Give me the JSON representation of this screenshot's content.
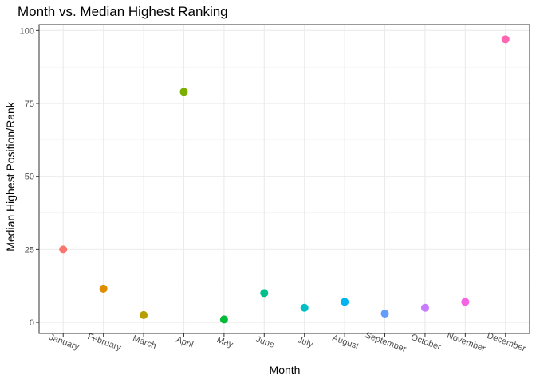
{
  "chart_data": {
    "type": "scatter",
    "title": "Month vs. Median Highest Ranking",
    "xlabel": "Month",
    "ylabel": "Median Highest Position/Rank",
    "categories": [
      "January",
      "February",
      "March",
      "April",
      "May",
      "June",
      "July",
      "August",
      "September",
      "October",
      "November",
      "December"
    ],
    "values": [
      25,
      11.5,
      2.5,
      79,
      1,
      10,
      5,
      7,
      3,
      5,
      7,
      97
    ],
    "colors": [
      "#F8766D",
      "#DE8C00",
      "#B79F00",
      "#7CAE00",
      "#00BA38",
      "#00C08B",
      "#00BFC4",
      "#00B4F0",
      "#619CFF",
      "#C77CFF",
      "#F564E3",
      "#FF64B0"
    ],
    "ylim": [
      -3.8,
      102
    ],
    "yticks": [
      0,
      25,
      50,
      75,
      100
    ],
    "grid": true,
    "legend": "none"
  }
}
